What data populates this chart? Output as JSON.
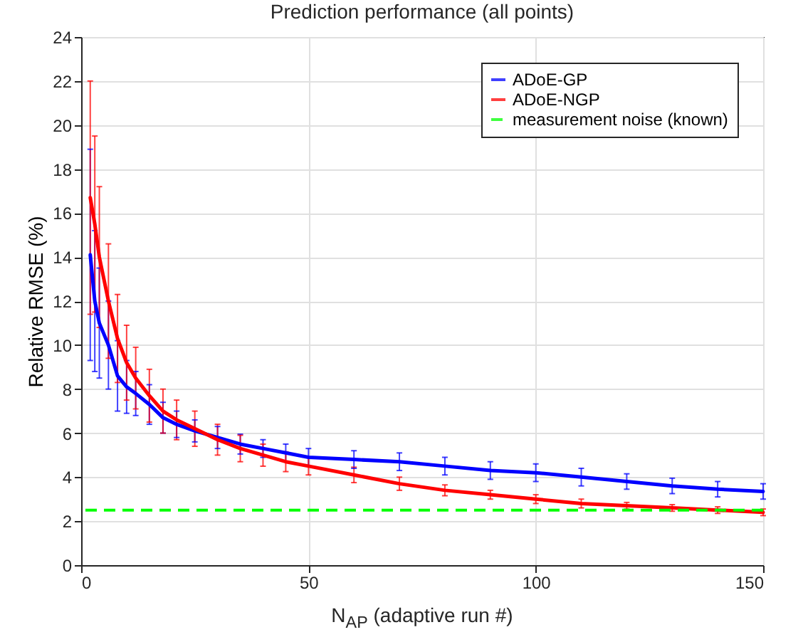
{
  "chart_data": {
    "type": "line",
    "title": "Prediction performance (all points)",
    "xlabel": "N$_{AP}$ (adaptive run #)",
    "ylabel": "Relative RMSE (%)",
    "xlim": [
      0,
      150
    ],
    "xticks": [
      0,
      50,
      100,
      150
    ],
    "ylim": [
      0,
      24
    ],
    "yticks": [
      0,
      2,
      4,
      6,
      8,
      10,
      12,
      14,
      16,
      18,
      20,
      22,
      24
    ],
    "grid": true,
    "legend": "top right",
    "marker": "none",
    "line_style": "solid",
    "series": [
      {
        "name": "ADoE-GP",
        "color": "#0000ff",
        "x": [
          2,
          3,
          4,
          6,
          8,
          10,
          12,
          15,
          18,
          21,
          25,
          30,
          35,
          40,
          45,
          50,
          60,
          70,
          80,
          90,
          100,
          110,
          120,
          130,
          140,
          150
        ],
        "values": [
          14.1,
          12,
          11,
          10,
          8.6,
          8.1,
          7.8,
          7.3,
          6.7,
          6.4,
          6.1,
          5.8,
          5.5,
          5.3,
          5.1,
          4.9,
          4.8,
          4.7,
          4.5,
          4.3,
          4.2,
          4,
          3.8,
          3.6,
          3.45,
          3.35
        ],
        "errors": [
          4.8,
          3.2,
          2.5,
          2,
          1.6,
          1.2,
          1,
          0.9,
          0.7,
          0.6,
          0.5,
          0.5,
          0.45,
          0.4,
          0.4,
          0.4,
          0.4,
          0.4,
          0.4,
          0.4,
          0.4,
          0.4,
          0.35,
          0.35,
          0.35,
          0.35
        ]
      },
      {
        "name": "ADoE-NGP",
        "color": "#ff0000",
        "x": [
          2,
          3,
          4,
          6,
          8,
          10,
          12,
          15,
          18,
          21,
          25,
          30,
          35,
          40,
          45,
          50,
          60,
          70,
          80,
          90,
          100,
          110,
          120,
          130,
          140,
          150
        ],
        "values": [
          16.7,
          15.5,
          14,
          12,
          10.3,
          9.2,
          8.5,
          7.7,
          7,
          6.6,
          6.2,
          5.7,
          5.3,
          5,
          4.7,
          4.5,
          4.1,
          3.7,
          3.4,
          3.2,
          3,
          2.8,
          2.7,
          2.6,
          2.5,
          2.4
        ],
        "errors": [
          5.3,
          4,
          3.2,
          2.6,
          2,
          1.7,
          1.4,
          1.2,
          1,
          0.9,
          0.8,
          0.7,
          0.6,
          0.5,
          0.45,
          0.4,
          0.35,
          0.3,
          0.25,
          0.2,
          0.2,
          0.2,
          0.15,
          0.15,
          0.15,
          0.15
        ]
      }
    ],
    "ref_lines": [
      {
        "axis": "y",
        "value": 2.5,
        "label": "measurement noise (known)",
        "color": "#00ff00",
        "line_style": "dashed"
      }
    ]
  }
}
